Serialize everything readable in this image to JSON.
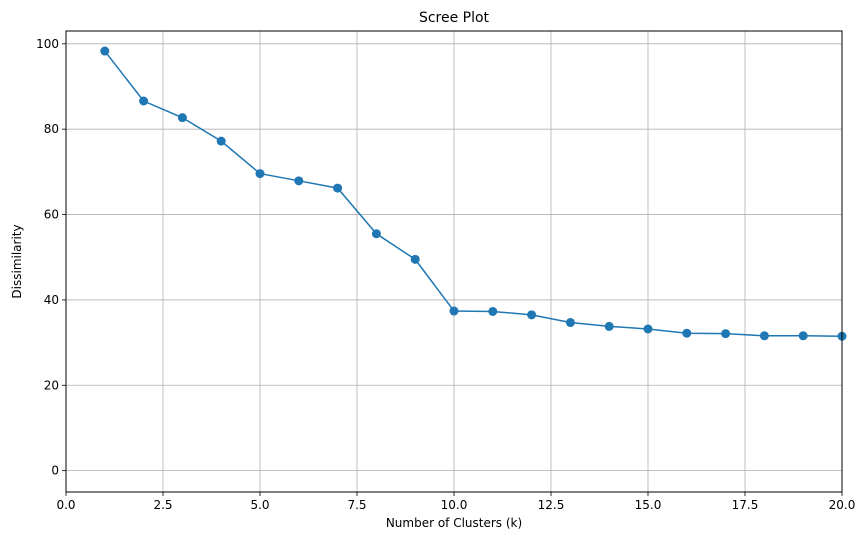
{
  "chart_data": {
    "type": "line",
    "title": "Scree Plot",
    "xlabel": "Number of Clusters (k)",
    "ylabel": "Dissimilarity",
    "xlim": [
      0,
      20
    ],
    "ylim": [
      -5,
      103
    ],
    "grid": true,
    "marker": "circle",
    "color": "#1f77b4",
    "x_ticks": [
      "0.0",
      "2.5",
      "5.0",
      "7.5",
      "10.0",
      "12.5",
      "15.0",
      "17.5",
      "20.0"
    ],
    "x_tick_values": [
      0,
      2.5,
      5,
      7.5,
      10,
      12.5,
      15,
      17.5,
      20
    ],
    "y_ticks": [
      "0",
      "20",
      "40",
      "60",
      "80",
      "100"
    ],
    "y_tick_values": [
      0,
      20,
      40,
      60,
      80,
      100
    ],
    "series": [
      {
        "x": [
          1,
          2,
          3,
          4,
          5,
          6,
          7,
          8,
          9,
          10,
          11,
          12,
          13,
          14,
          15,
          16,
          17,
          18,
          19,
          20
        ],
        "values": [
          98.3,
          86.6,
          82.7,
          77.2,
          69.6,
          67.9,
          66.2,
          55.5,
          49.5,
          37.4,
          37.3,
          36.5,
          34.7,
          33.8,
          33.2,
          32.2,
          32.1,
          31.6,
          31.6,
          31.5
        ]
      }
    ]
  }
}
